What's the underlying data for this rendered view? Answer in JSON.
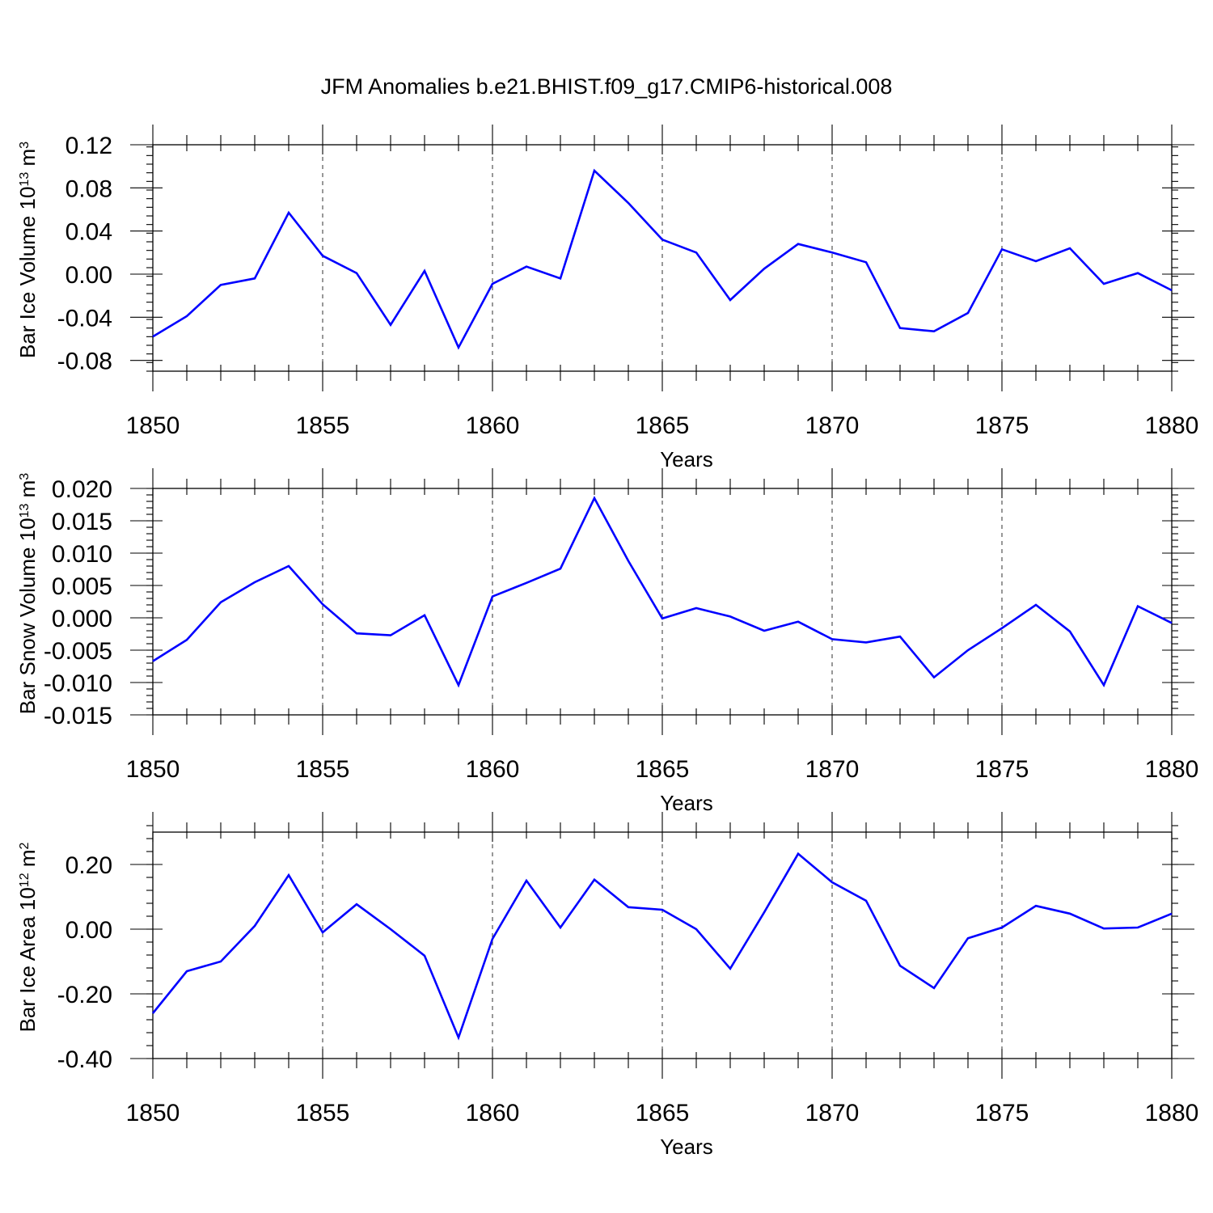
{
  "title": "JFM Anomalies b.e21.BHIST.f09_g17.CMIP6-historical.008",
  "colors": {
    "line": "#0000ff",
    "axis": "#000000"
  },
  "chart_data": [
    {
      "type": "line",
      "ylabel": "Bar Ice Volume 10",
      "ylabel_exp": "13",
      "ylabel_unit": " m",
      "ylabel_unit_exp": "3",
      "xlabel": "Years",
      "xlim": [
        1850,
        1880
      ],
      "ylim": [
        -0.09,
        0.12
      ],
      "xticks": [
        "1850",
        "1855",
        "1860",
        "1865",
        "1870",
        "1875",
        "1880"
      ],
      "yticks": [
        "0.12",
        "0.08",
        "0.04",
        "0.00",
        "-0.04",
        "-0.08"
      ],
      "ytick_values": [
        0.12,
        0.08,
        0.04,
        0.0,
        -0.04,
        -0.08
      ],
      "yminor_step": 0.008,
      "series": [
        {
          "name": "Bar Ice Volume",
          "x": [
            1850,
            1851,
            1852,
            1853,
            1854,
            1855,
            1856,
            1857,
            1858,
            1859,
            1860,
            1861,
            1862,
            1863,
            1864,
            1865,
            1866,
            1867,
            1868,
            1869,
            1870,
            1871,
            1872,
            1873,
            1874,
            1875,
            1876,
            1877,
            1878,
            1879,
            1880
          ],
          "values": [
            -0.058,
            -0.039,
            -0.01,
            -0.004,
            0.057,
            0.017,
            0.001,
            -0.047,
            0.003,
            -0.068,
            -0.009,
            0.007,
            -0.004,
            0.096,
            0.066,
            0.032,
            0.02,
            -0.024,
            0.005,
            0.028,
            0.02,
            0.011,
            -0.05,
            -0.053,
            -0.036,
            0.023,
            0.012,
            0.024,
            -0.009,
            0.001,
            -0.015
          ]
        }
      ]
    },
    {
      "type": "line",
      "ylabel": "Bar Snow Volume 10",
      "ylabel_exp": "13",
      "ylabel_unit": " m",
      "ylabel_unit_exp": "3",
      "xlabel": "Years",
      "xlim": [
        1850,
        1880
      ],
      "ylim": [
        -0.015,
        0.02
      ],
      "xticks": [
        "1850",
        "1855",
        "1860",
        "1865",
        "1870",
        "1875",
        "1880"
      ],
      "yticks": [
        "0.020",
        "0.015",
        "0.010",
        "0.005",
        "0.000",
        "-0.005",
        "-0.010",
        "-0.015"
      ],
      "ytick_values": [
        0.02,
        0.015,
        0.01,
        0.005,
        0.0,
        -0.005,
        -0.01,
        -0.015
      ],
      "yminor_step": 0.001,
      "series": [
        {
          "name": "Bar Snow Volume",
          "x": [
            1850,
            1851,
            1852,
            1853,
            1854,
            1855,
            1856,
            1857,
            1858,
            1859,
            1860,
            1861,
            1862,
            1863,
            1864,
            1865,
            1866,
            1867,
            1868,
            1869,
            1870,
            1871,
            1872,
            1873,
            1874,
            1875,
            1876,
            1877,
            1878,
            1879,
            1880
          ],
          "values": [
            -0.0067,
            -0.0034,
            0.0024,
            0.0055,
            0.008,
            0.0021,
            -0.0024,
            -0.0027,
            0.0004,
            -0.0104,
            0.0033,
            0.0054,
            0.0076,
            0.0185,
            0.0088,
            -0.0001,
            0.0015,
            0.0002,
            -0.002,
            -0.0006,
            -0.0033,
            -0.0038,
            -0.0029,
            -0.0092,
            -0.005,
            -0.0016,
            0.002,
            -0.0021,
            -0.0104,
            0.0018,
            -0.0008
          ]
        }
      ]
    },
    {
      "type": "line",
      "ylabel": "Bar Ice Area 10",
      "ylabel_exp": "12",
      "ylabel_unit": " m",
      "ylabel_unit_exp": "2",
      "xlabel": "Years",
      "xlim": [
        1850,
        1880
      ],
      "ylim": [
        -0.4,
        0.3
      ],
      "xticks": [
        "1850",
        "1855",
        "1860",
        "1865",
        "1870",
        "1875",
        "1880"
      ],
      "yticks": [
        "0.20",
        "0.00",
        "-0.20",
        "-0.40"
      ],
      "ytick_values": [
        0.2,
        0.0,
        -0.2,
        -0.4
      ],
      "yminor_step": 0.04,
      "series": [
        {
          "name": "Bar Ice Area",
          "x": [
            1850,
            1851,
            1852,
            1853,
            1854,
            1855,
            1856,
            1857,
            1858,
            1859,
            1860,
            1861,
            1862,
            1863,
            1864,
            1865,
            1866,
            1867,
            1868,
            1869,
            1870,
            1871,
            1872,
            1873,
            1874,
            1875,
            1876,
            1877,
            1878,
            1879,
            1880
          ],
          "values": [
            -0.26,
            -0.13,
            -0.1,
            0.01,
            0.167,
            -0.01,
            0.077,
            0.0,
            -0.082,
            -0.335,
            -0.03,
            0.15,
            0.005,
            0.153,
            0.068,
            0.06,
            0.0,
            -0.122,
            0.052,
            0.233,
            0.145,
            0.088,
            -0.113,
            -0.182,
            -0.028,
            0.005,
            0.072,
            0.048,
            0.002,
            0.005,
            0.048
          ]
        }
      ]
    }
  ]
}
